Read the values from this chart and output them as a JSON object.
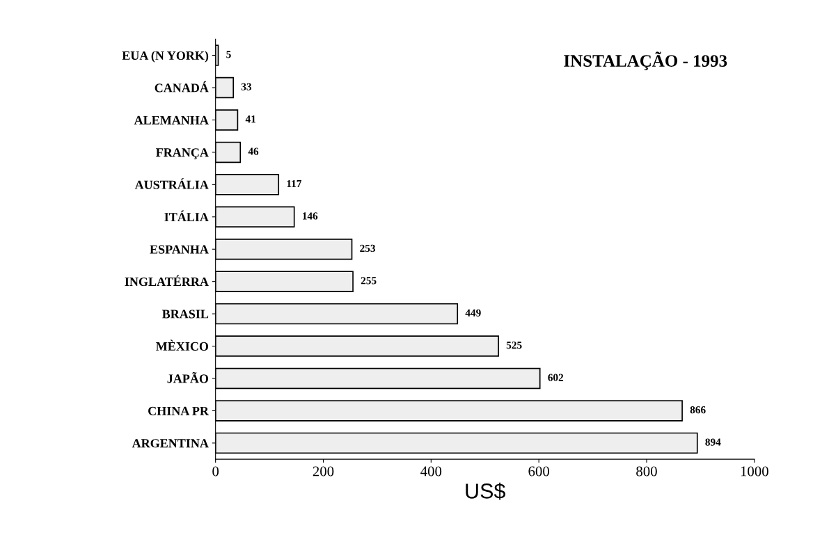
{
  "chart_data": {
    "type": "bar",
    "orientation": "horizontal",
    "title": "INSTALAÇÃO - 1993",
    "xlabel": "US$",
    "categories": [
      "EUA (N YORK)",
      "CANADÁ",
      "ALEMANHA",
      "FRANÇA",
      "AUSTRÁLIA",
      "ITÁLIA",
      "ESPANHA",
      "INGLATÉRRA",
      "BRASIL",
      "MÈXICO",
      "JAPÃO",
      "CHINA PR",
      "ARGENTINA"
    ],
    "values": [
      5,
      33,
      41,
      46,
      117,
      146,
      253,
      255,
      449,
      525,
      602,
      866,
      894
    ],
    "color": "#eeeeee",
    "data_labels": true,
    "xlim": [
      0,
      1000
    ],
    "xticks": [
      0,
      200,
      400,
      600,
      800,
      1000
    ],
    "grid": false
  }
}
